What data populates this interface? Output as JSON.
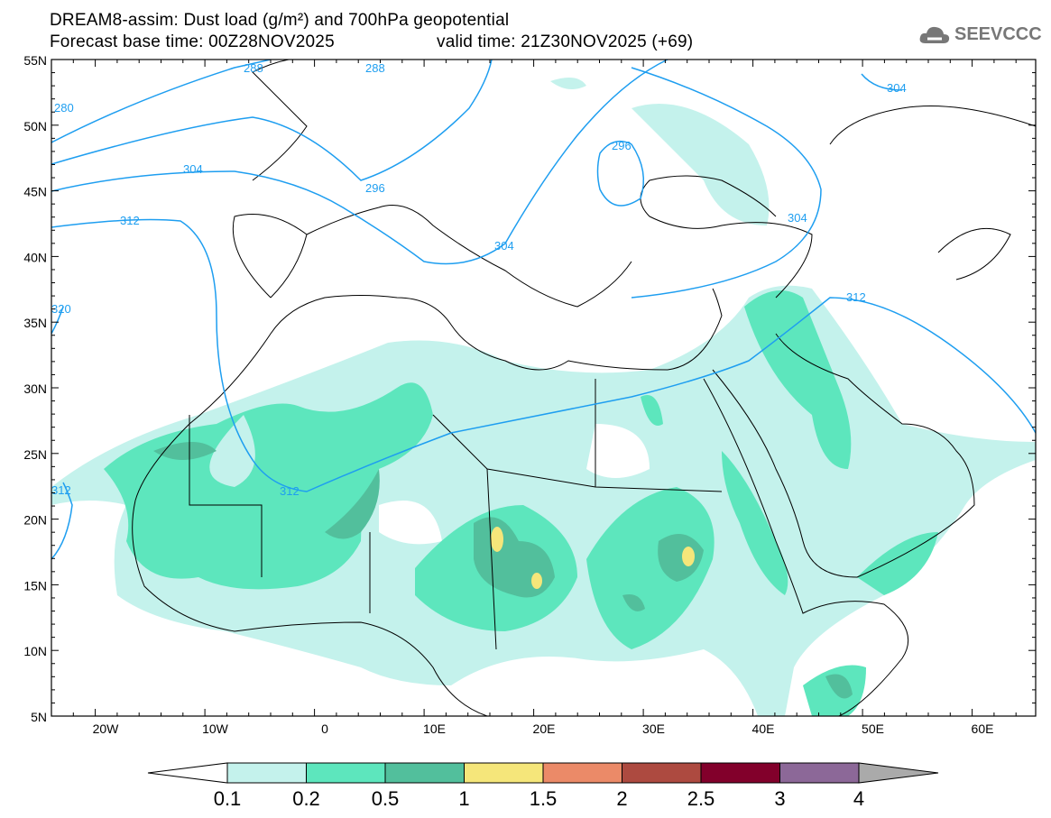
{
  "header": {
    "title": "DREAM8-assim: Dust load (g/m²) and 700hPa geopotential",
    "base_time": "Forecast base time: 00Z28NOV2025",
    "valid_time": "valid time: 21Z30NOV2025 (+69)"
  },
  "logo": {
    "text": "SEEVCCC",
    "icon": "cloud-icon"
  },
  "map": {
    "lat_labels": [
      "55N",
      "50N",
      "45N",
      "40N",
      "35N",
      "30N",
      "25N",
      "20N",
      "15N",
      "10N",
      "5N"
    ],
    "lon_labels": [
      "20W",
      "10W",
      "0",
      "10E",
      "20E",
      "30E",
      "40E",
      "50E",
      "60E"
    ],
    "contour_labels": [
      "280",
      "288",
      "288",
      "296",
      "296",
      "304",
      "304",
      "304",
      "304",
      "312",
      "312",
      "312",
      "320",
      "312"
    ]
  },
  "colorbar": {
    "ticks": [
      "0.1",
      "0.2",
      "0.5",
      "1",
      "1.5",
      "2",
      "2.5",
      "3",
      "4"
    ],
    "colors": [
      "#c4f2ec",
      "#5de6bd",
      "#52bf9c",
      "#f5e67a",
      "#eb8a68",
      "#ad4a40",
      "#82002b",
      "#8c6898"
    ],
    "under_color": "#ffffff",
    "over_color": "#aaaaaa"
  }
}
